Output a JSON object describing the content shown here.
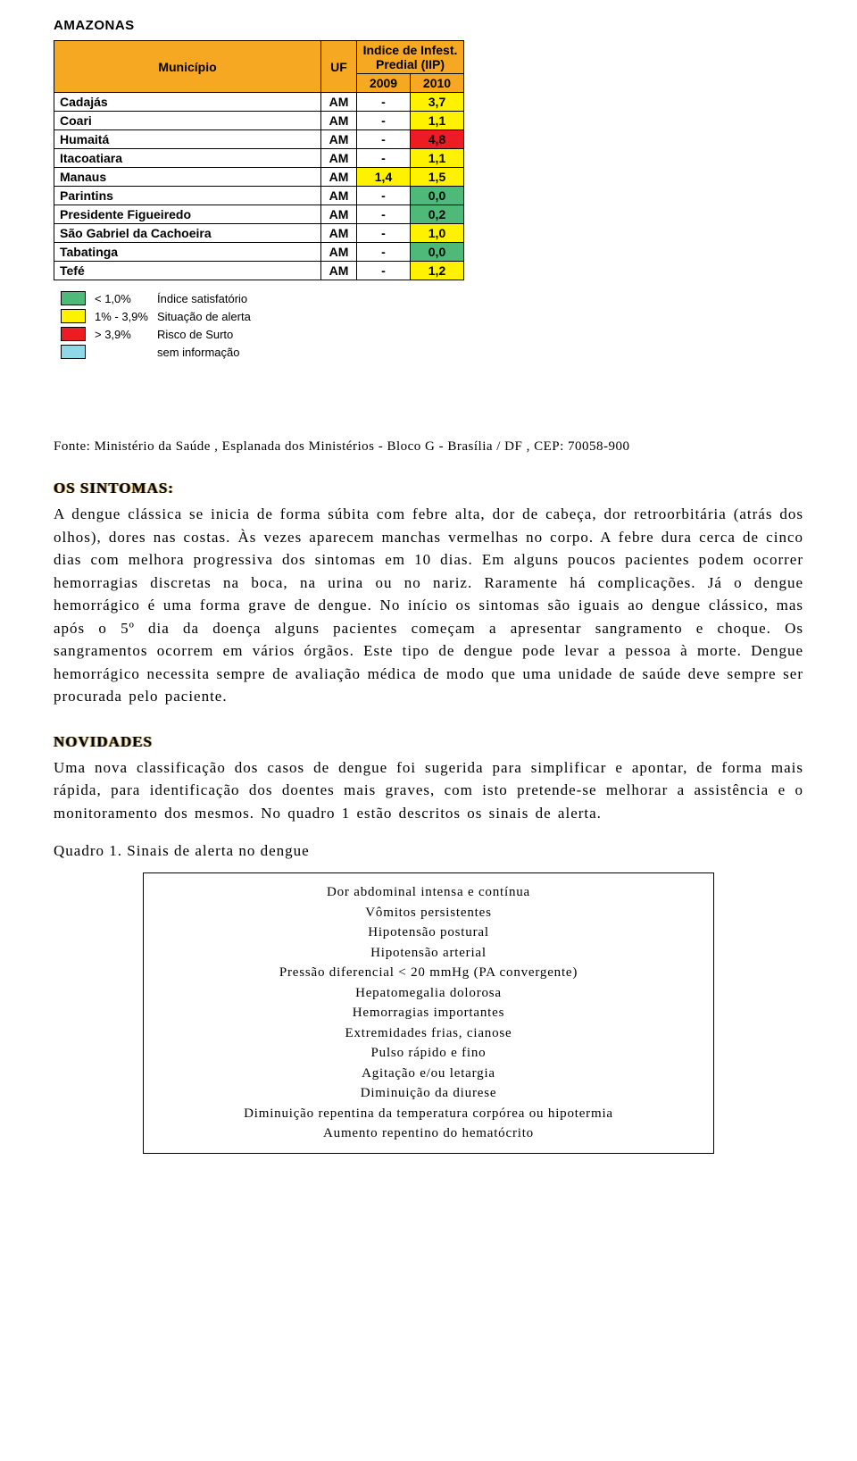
{
  "colors": {
    "header_bg": "#f7a823",
    "green": "#4fb97a",
    "yellow": "#fef200",
    "red": "#ed1c24",
    "cyan": "#8fd8e8",
    "white": "#ffffff"
  },
  "header": {
    "state": "AMAZONAS"
  },
  "table": {
    "col_municipio": "Município",
    "col_uf": "UF",
    "col_iip": "Indice de Infest. Predial (IIP)",
    "years": [
      "2009",
      "2010"
    ],
    "rows": [
      {
        "name": "Cadajás",
        "uf": "AM",
        "v2009": "-",
        "c2009": "white",
        "v2010": "3,7",
        "c2010": "yellow"
      },
      {
        "name": "Coari",
        "uf": "AM",
        "v2009": "-",
        "c2009": "white",
        "v2010": "1,1",
        "c2010": "yellow"
      },
      {
        "name": "Humaitá",
        "uf": "AM",
        "v2009": "-",
        "c2009": "white",
        "v2010": "4,8",
        "c2010": "red"
      },
      {
        "name": "Itacoatiara",
        "uf": "AM",
        "v2009": "-",
        "c2009": "white",
        "v2010": "1,1",
        "c2010": "yellow"
      },
      {
        "name": "Manaus",
        "uf": "AM",
        "v2009": "1,4",
        "c2009": "yellow",
        "v2010": "1,5",
        "c2010": "yellow"
      },
      {
        "name": "Parintins",
        "uf": "AM",
        "v2009": "-",
        "c2009": "white",
        "v2010": "0,0",
        "c2010": "green"
      },
      {
        "name": "Presidente Figueiredo",
        "uf": "AM",
        "v2009": "-",
        "c2009": "white",
        "v2010": "0,2",
        "c2010": "green"
      },
      {
        "name": "São Gabriel da Cachoeira",
        "uf": "AM",
        "v2009": "-",
        "c2009": "white",
        "v2010": "1,0",
        "c2010": "yellow"
      },
      {
        "name": "Tabatinga",
        "uf": "AM",
        "v2009": "-",
        "c2009": "white",
        "v2010": "0,0",
        "c2010": "green"
      },
      {
        "name": "Tefé",
        "uf": "AM",
        "v2009": "-",
        "c2009": "white",
        "v2010": "1,2",
        "c2010": "yellow"
      }
    ]
  },
  "legend": [
    {
      "color": "green",
      "pct": "< 1,0%",
      "label": "Índice satisfatório"
    },
    {
      "color": "yellow",
      "pct": "1% - 3,9%",
      "label": "Situação de alerta"
    },
    {
      "color": "red",
      "pct": "> 3,9%",
      "label": "Risco de Surto"
    },
    {
      "color": "cyan",
      "pct": "",
      "label": "sem informação"
    }
  ],
  "source": "Fonte: Ministério da Saúde , Esplanada dos Ministérios - Bloco G - Brasília / DF , CEP: 70058-900",
  "sections": {
    "sintomas_h": "OS SINTOMAS:",
    "sintomas_p": "A dengue clássica se inicia de forma súbita com febre alta, dor de cabeça, dor retroorbitária (atrás dos olhos), dores nas costas. Às vezes aparecem manchas vermelhas no corpo. A febre dura cerca de cinco dias com melhora progressiva dos sintomas em 10 dias. Em alguns poucos pacientes podem ocorrer hemorragias discretas na boca, na urina ou no nariz. Raramente há complicações. Já o dengue hemorrágico é uma forma grave de dengue. No início os sintomas são iguais ao dengue clássico, mas após o 5º dia da doença alguns pacientes começam a apresentar sangramento e choque. Os sangramentos ocorrem em vários órgãos. Este tipo de dengue pode levar a pessoa à morte. Dengue hemorrágico necessita sempre de avaliação médica de modo que uma unidade de saúde deve sempre ser procurada pelo paciente.",
    "novidades_h": "NOVIDADES",
    "novidades_p": "Uma nova classificação dos casos de dengue foi sugerida para simplificar e apontar, de forma mais rápida, para identificação dos doentes mais graves, com isto pretende-se melhorar a assistência e o monitoramento dos mesmos. No quadro 1 estão descritos os sinais de alerta."
  },
  "quadro": {
    "title": "Quadro 1. Sinais de alerta no dengue",
    "items": [
      "Dor abdominal intensa e contínua",
      "Vômitos persistentes",
      "Hipotensão postural",
      "Hipotensão arterial",
      "Pressão diferencial < 20 mmHg (PA convergente)",
      "Hepatomegalia dolorosa",
      "Hemorragias importantes",
      "Extremidades frias, cianose",
      "Pulso rápido e fino",
      "Agitação e/ou letargia",
      "Diminuição da diurese",
      "Diminuição repentina da temperatura corpórea ou hipotermia",
      "Aumento repentino do hematócrito"
    ]
  }
}
